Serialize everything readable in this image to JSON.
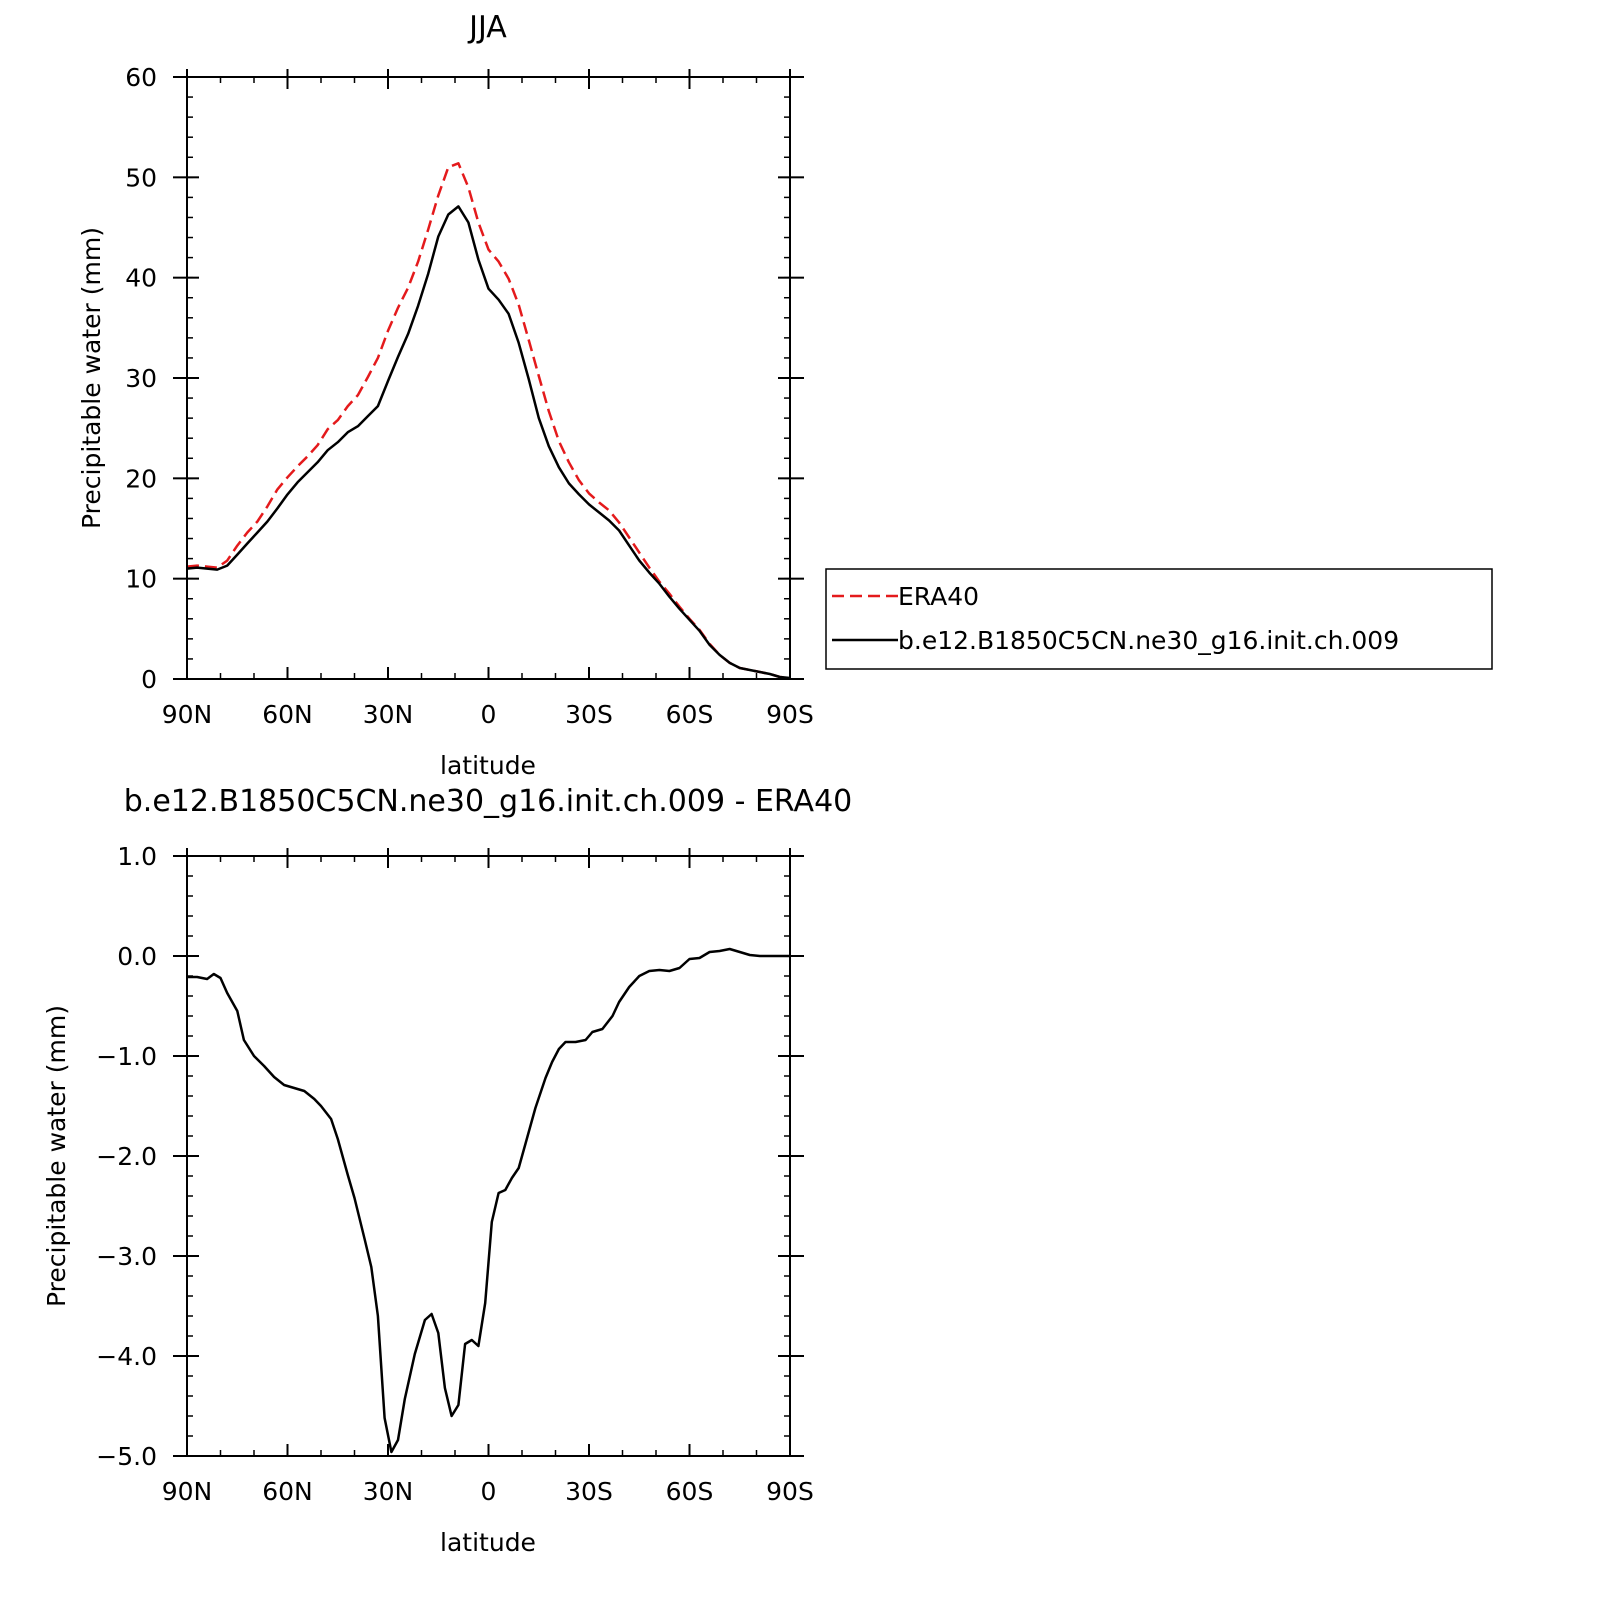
{
  "colors": {
    "era40": "#e41a1c",
    "model": "#000000",
    "axes": "#000000"
  },
  "chart_data": [
    {
      "type": "line",
      "title": "JJA",
      "xlabel": "latitude",
      "ylabel": "Precipitable water (mm)",
      "xlim": [
        90,
        -90
      ],
      "ylim": [
        0,
        60
      ],
      "x_ticks": [
        90,
        60,
        30,
        0,
        -30,
        -60,
        -90
      ],
      "x_tick_labels": [
        "90N",
        "60N",
        "30N",
        "0",
        "30S",
        "60S",
        "90S"
      ],
      "y_ticks": [
        0,
        10,
        20,
        30,
        40,
        50,
        60
      ],
      "y_tick_labels": [
        "0",
        "10",
        "20",
        "30",
        "40",
        "50",
        "60"
      ],
      "legend": {
        "placement": "right",
        "entries": [
          "ERA40",
          "b.e12.B1850C5CN.ne30_g16.init.ch.009"
        ]
      },
      "series": [
        {
          "name": "ERA40",
          "style": "dashed",
          "color": "#e41a1c",
          "x": [
            90,
            87,
            84,
            81,
            78,
            75,
            72,
            69,
            66,
            63,
            60,
            57,
            54,
            51,
            48,
            45,
            42,
            39,
            36,
            33,
            30,
            27,
            24,
            21,
            18,
            15,
            12,
            9,
            6,
            3,
            0,
            -3,
            -6,
            -9,
            -12,
            -15,
            -18,
            -21,
            -24,
            -27,
            -30,
            -33,
            -36,
            -39,
            -42,
            -45,
            -48,
            -51,
            -54,
            -57,
            -60,
            -63,
            -66,
            -69,
            -72,
            -75,
            -78,
            -81,
            -84,
            -87,
            -90
          ],
          "values": [
            11.2,
            11.3,
            11.2,
            11.1,
            11.8,
            13.3,
            14.6,
            15.7,
            17.2,
            18.9,
            20.1,
            21.2,
            22.2,
            23.3,
            24.9,
            25.8,
            27.2,
            28.3,
            30.1,
            32.0,
            34.7,
            37.0,
            39.0,
            41.6,
            44.8,
            48.2,
            51.0,
            51.4,
            49.0,
            45.5,
            42.8,
            41.6,
            39.9,
            37.3,
            33.8,
            30.2,
            26.7,
            23.7,
            21.6,
            19.8,
            18.5,
            17.6,
            16.8,
            15.6,
            14.1,
            12.6,
            11.1,
            9.7,
            8.5,
            7.2,
            6.0,
            4.9,
            3.5,
            2.4,
            1.6,
            1.1,
            0.9,
            0.7,
            0.5,
            0.2,
            0.1
          ]
        },
        {
          "name": "b.e12.B1850C5CN.ne30_g16.init.ch.009",
          "style": "solid",
          "color": "#000000",
          "x": [
            90,
            87,
            84,
            81,
            78,
            75,
            72,
            69,
            66,
            63,
            60,
            57,
            54,
            51,
            48,
            45,
            42,
            39,
            36,
            33,
            30,
            27,
            24,
            21,
            18,
            15,
            12,
            9,
            6,
            3,
            0,
            -3,
            -6,
            -9,
            -12,
            -15,
            -18,
            -21,
            -24,
            -27,
            -30,
            -33,
            -36,
            -39,
            -42,
            -45,
            -48,
            -51,
            -54,
            -57,
            -60,
            -63,
            -66,
            -69,
            -72,
            -75,
            -78,
            -81,
            -84,
            -87,
            -90
          ],
          "values": [
            11.0,
            11.1,
            11.0,
            10.9,
            11.3,
            12.4,
            13.5,
            14.6,
            15.7,
            17.0,
            18.4,
            19.6,
            20.6,
            21.6,
            22.8,
            23.6,
            24.6,
            25.2,
            26.2,
            27.2,
            29.7,
            32.1,
            34.4,
            37.2,
            40.4,
            44.1,
            46.3,
            47.1,
            45.5,
            41.8,
            38.9,
            37.8,
            36.4,
            33.5,
            29.9,
            26.0,
            23.2,
            21.1,
            19.5,
            18.4,
            17.4,
            16.6,
            15.8,
            14.8,
            13.3,
            11.8,
            10.6,
            9.5,
            8.2,
            7.0,
            5.9,
            4.8,
            3.4,
            2.4,
            1.6,
            1.1,
            0.9,
            0.7,
            0.5,
            0.2,
            0.1
          ]
        }
      ]
    },
    {
      "type": "line",
      "title": "b.e12.B1850C5CN.ne30_g16.init.ch.009 - ERA40",
      "xlabel": "latitude",
      "ylabel": "Precipitable water (mm)",
      "xlim": [
        90,
        -90
      ],
      "ylim": [
        -5.0,
        1.0
      ],
      "x_ticks": [
        90,
        60,
        30,
        0,
        -30,
        -60,
        -90
      ],
      "x_tick_labels": [
        "90N",
        "60N",
        "30N",
        "0",
        "30S",
        "60S",
        "90S"
      ],
      "y_ticks": [
        1.0,
        0.0,
        -1.0,
        -2.0,
        -3.0,
        -4.0,
        -5.0
      ],
      "y_tick_labels": [
        "1.0",
        "0.0",
        "−1.0",
        "−2.0",
        "−3.0",
        "−4.0",
        "−5.0"
      ],
      "series": [
        {
          "style": "solid",
          "color": "#000000",
          "x": [
            90,
            87,
            84,
            82,
            80,
            78,
            75,
            73,
            70,
            67,
            64,
            61,
            58,
            55,
            52,
            50,
            47,
            45,
            42,
            40,
            37,
            35,
            33,
            31,
            29,
            27,
            25,
            22,
            19,
            17,
            15,
            13,
            11,
            9,
            7,
            5,
            3,
            1,
            -1,
            -3,
            -5,
            -7,
            -9,
            -11,
            -14,
            -17,
            -19,
            -21,
            -23,
            -26,
            -29,
            -31,
            -34,
            -37,
            -39,
            -42,
            -45,
            -48,
            -51,
            -54,
            -57,
            -60,
            -63,
            -66,
            -69,
            -72,
            -75,
            -78,
            -81,
            -84,
            -87,
            -90
          ],
          "values": [
            -0.21,
            -0.21,
            -0.23,
            -0.18,
            -0.22,
            -0.37,
            -0.55,
            -0.84,
            -1.0,
            -1.1,
            -1.21,
            -1.29,
            -1.32,
            -1.35,
            -1.43,
            -1.5,
            -1.63,
            -1.83,
            -2.19,
            -2.42,
            -2.83,
            -3.11,
            -3.6,
            -4.62,
            -4.96,
            -4.84,
            -4.43,
            -3.98,
            -3.64,
            -3.58,
            -3.77,
            -4.32,
            -4.6,
            -4.49,
            -3.88,
            -3.84,
            -3.9,
            -3.47,
            -2.66,
            -2.37,
            -2.34,
            -2.22,
            -2.12,
            -1.88,
            -1.52,
            -1.22,
            -1.06,
            -0.93,
            -0.86,
            -0.86,
            -0.84,
            -0.76,
            -0.73,
            -0.6,
            -0.46,
            -0.31,
            -0.2,
            -0.15,
            -0.14,
            -0.15,
            -0.12,
            -0.03,
            -0.02,
            0.04,
            0.05,
            0.07,
            0.04,
            0.01,
            0.0,
            0.0,
            0.0,
            0.0
          ]
        }
      ]
    }
  ]
}
